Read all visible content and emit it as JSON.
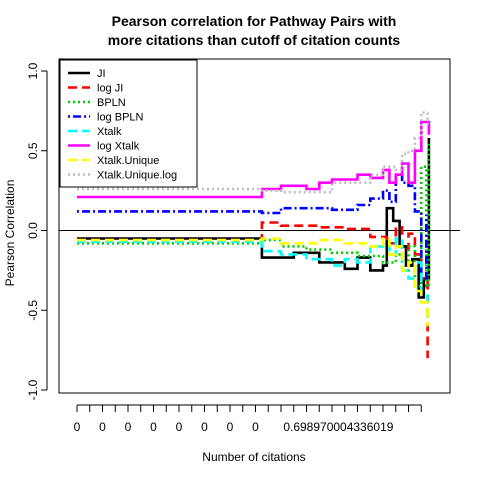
{
  "chart_data": {
    "type": "line",
    "title_lines": [
      "Pearson correlation for Pathway Pairs with",
      "more citations than cutoff of citation counts"
    ],
    "xlabel": "Number of citations",
    "ylabel": "Pearson Correlation",
    "ylim": [
      -1.0,
      1.0
    ],
    "xlim": [
      1,
      29
    ],
    "y_ticks": [
      {
        "value": -1.0,
        "label": "-1.0"
      },
      {
        "value": -0.5,
        "label": "-0.5"
      },
      {
        "value": 0.0,
        "label": "0.0"
      },
      {
        "value": 0.5,
        "label": "0.5"
      },
      {
        "value": 1.0,
        "label": "1.0"
      }
    ],
    "x_tick_positions": [
      1,
      2,
      3,
      4,
      5,
      6,
      7,
      8,
      9,
      10,
      11,
      12,
      13,
      14,
      15,
      16,
      17,
      18,
      19,
      20,
      21,
      22,
      23,
      24,
      25,
      26,
      27,
      28
    ],
    "x_tick_labels": [
      {
        "position": 1,
        "text": "0"
      },
      {
        "position": 3,
        "text": "0"
      },
      {
        "position": 5,
        "text": "0"
      },
      {
        "position": 7,
        "text": "0"
      },
      {
        "position": 9,
        "text": "0"
      },
      {
        "position": 11,
        "text": "0"
      },
      {
        "position": 13,
        "text": "0"
      },
      {
        "position": 15,
        "text": "0"
      },
      {
        "position": 21.5,
        "text": "0.698970004336019"
      }
    ],
    "reference_line_y": 0,
    "legend_position": "top-left",
    "series": [
      {
        "name": "JI",
        "color": "#000000",
        "dash": "solid",
        "points": [
          [
            1,
            -0.05
          ],
          [
            15.5,
            -0.05
          ],
          [
            15.5,
            -0.17
          ],
          [
            18,
            -0.17
          ],
          [
            18,
            -0.14
          ],
          [
            20,
            -0.14
          ],
          [
            20,
            -0.2
          ],
          [
            22,
            -0.2
          ],
          [
            22,
            -0.24
          ],
          [
            23,
            -0.24
          ],
          [
            23,
            -0.17
          ],
          [
            24,
            -0.17
          ],
          [
            24,
            -0.25
          ],
          [
            25,
            -0.25
          ],
          [
            25,
            -0.22
          ],
          [
            25.3,
            -0.22
          ],
          [
            25.3,
            0.14
          ],
          [
            25.8,
            0.14
          ],
          [
            25.8,
            0.06
          ],
          [
            26.3,
            0.06
          ],
          [
            26.3,
            -0.1
          ],
          [
            26.8,
            -0.1
          ],
          [
            26.8,
            -0.22
          ],
          [
            27.3,
            -0.22
          ],
          [
            27.3,
            -0.18
          ],
          [
            27.8,
            -0.18
          ],
          [
            27.8,
            -0.42
          ],
          [
            28.2,
            -0.42
          ],
          [
            28.2,
            -0.3
          ],
          [
            28.6,
            -0.3
          ],
          [
            28.6,
            0.58
          ]
        ]
      },
      {
        "name": "log JI",
        "color": "#ff0000",
        "dash": "long",
        "points": [
          [
            1,
            -0.06
          ],
          [
            15.5,
            -0.06
          ],
          [
            15.5,
            0.05
          ],
          [
            17,
            0.05
          ],
          [
            17,
            0.03
          ],
          [
            20,
            0.03
          ],
          [
            20,
            0.02
          ],
          [
            22,
            0.02
          ],
          [
            22,
            0.01
          ],
          [
            24,
            0.01
          ],
          [
            24,
            -0.04
          ],
          [
            25.3,
            -0.04
          ],
          [
            25.3,
            -0.08
          ],
          [
            26,
            -0.08
          ],
          [
            26,
            0.02
          ],
          [
            26.5,
            0.02
          ],
          [
            26.5,
            -0.12
          ],
          [
            27,
            -0.12
          ],
          [
            27,
            -0.02
          ],
          [
            27.5,
            -0.02
          ],
          [
            27.5,
            -0.15
          ],
          [
            28,
            -0.15
          ],
          [
            28,
            -0.3
          ],
          [
            28.5,
            -0.3
          ],
          [
            28.5,
            -0.8
          ]
        ]
      },
      {
        "name": "BPLN",
        "color": "#00cc00",
        "dash": "dotted",
        "points": [
          [
            1,
            -0.08
          ],
          [
            15.5,
            -0.08
          ],
          [
            15.5,
            -0.06
          ],
          [
            17,
            -0.06
          ],
          [
            17,
            -0.1
          ],
          [
            19,
            -0.1
          ],
          [
            19,
            -0.12
          ],
          [
            21,
            -0.12
          ],
          [
            21,
            -0.14
          ],
          [
            23,
            -0.14
          ],
          [
            23,
            -0.16
          ],
          [
            25,
            -0.16
          ],
          [
            25,
            -0.2
          ],
          [
            26,
            -0.2
          ],
          [
            26,
            -0.15
          ],
          [
            26.5,
            -0.15
          ],
          [
            26.5,
            -0.25
          ],
          [
            27,
            -0.25
          ],
          [
            27,
            -0.1
          ],
          [
            27.5,
            -0.1
          ],
          [
            27.5,
            -0.35
          ],
          [
            28,
            -0.35
          ],
          [
            28,
            0.4
          ],
          [
            28.4,
            0.4
          ],
          [
            28.4,
            -0.35
          ],
          [
            28.6,
            -0.35
          ],
          [
            28.6,
            0.55
          ]
        ]
      },
      {
        "name": "log BPLN",
        "color": "#0000ff",
        "dash": "dotdash",
        "points": [
          [
            1,
            0.12
          ],
          [
            15.5,
            0.12
          ],
          [
            15.5,
            0.11
          ],
          [
            17,
            0.11
          ],
          [
            17,
            0.14
          ],
          [
            21,
            0.14
          ],
          [
            21,
            0.13
          ],
          [
            23,
            0.13
          ],
          [
            23,
            0.16
          ],
          [
            24,
            0.16
          ],
          [
            24,
            0.2
          ],
          [
            25,
            0.2
          ],
          [
            25,
            0.25
          ],
          [
            25.5,
            0.25
          ],
          [
            25.5,
            0.18
          ],
          [
            26,
            0.18
          ],
          [
            26,
            0.35
          ],
          [
            26.5,
            0.35
          ],
          [
            26.5,
            0.3
          ],
          [
            27,
            0.3
          ],
          [
            27,
            0.28
          ],
          [
            27.5,
            0.28
          ],
          [
            27.5,
            0.12
          ],
          [
            28,
            0.12
          ],
          [
            28,
            -0.3
          ],
          [
            28.4,
            -0.3
          ],
          [
            28.4,
            0.1
          ]
        ]
      },
      {
        "name": "Xtalk",
        "color": "#00ffff",
        "dash": "long",
        "points": [
          [
            1,
            -0.07
          ],
          [
            15.5,
            -0.07
          ],
          [
            15.5,
            -0.13
          ],
          [
            17,
            -0.13
          ],
          [
            17,
            -0.15
          ],
          [
            19,
            -0.15
          ],
          [
            19,
            -0.18
          ],
          [
            21,
            -0.18
          ],
          [
            21,
            -0.22
          ],
          [
            22,
            -0.22
          ],
          [
            22,
            -0.18
          ],
          [
            23,
            -0.18
          ],
          [
            23,
            -0.2
          ],
          [
            24,
            -0.2
          ],
          [
            24,
            -0.1
          ],
          [
            25,
            -0.1
          ],
          [
            25,
            -0.08
          ],
          [
            25.5,
            -0.08
          ],
          [
            25.5,
            -0.15
          ],
          [
            26,
            -0.15
          ],
          [
            26,
            -0.05
          ],
          [
            26.5,
            -0.05
          ],
          [
            26.5,
            -0.25
          ],
          [
            27,
            -0.25
          ],
          [
            27,
            -0.3
          ],
          [
            27.5,
            -0.3
          ],
          [
            27.5,
            -0.2
          ],
          [
            28,
            -0.2
          ],
          [
            28,
            -0.4
          ],
          [
            28.5,
            -0.4
          ],
          [
            28.5,
            -0.55
          ]
        ]
      },
      {
        "name": "log Xtalk",
        "color": "#ff00ff",
        "dash": "solid",
        "points": [
          [
            1,
            0.21
          ],
          [
            15.5,
            0.21
          ],
          [
            15.5,
            0.26
          ],
          [
            17,
            0.26
          ],
          [
            17,
            0.28
          ],
          [
            19,
            0.28
          ],
          [
            19,
            0.26
          ],
          [
            20,
            0.26
          ],
          [
            20,
            0.3
          ],
          [
            21,
            0.3
          ],
          [
            21,
            0.32
          ],
          [
            23,
            0.32
          ],
          [
            23,
            0.35
          ],
          [
            24,
            0.35
          ],
          [
            24,
            0.33
          ],
          [
            25,
            0.33
          ],
          [
            25,
            0.38
          ],
          [
            25.5,
            0.38
          ],
          [
            25.5,
            0.3
          ],
          [
            26,
            0.3
          ],
          [
            26,
            0.35
          ],
          [
            26.5,
            0.35
          ],
          [
            26.5,
            0.42
          ],
          [
            27,
            0.42
          ],
          [
            27,
            0.3
          ],
          [
            27.5,
            0.3
          ],
          [
            27.5,
            0.5
          ],
          [
            28,
            0.5
          ],
          [
            28,
            0.68
          ],
          [
            28.6,
            0.68
          ],
          [
            28.6,
            0.6
          ]
        ]
      },
      {
        "name": "Xtalk.Unique",
        "color": "#ffff00",
        "dash": "long",
        "points": [
          [
            1,
            -0.06
          ],
          [
            15.5,
            -0.06
          ],
          [
            15.5,
            -0.05
          ],
          [
            17,
            -0.05
          ],
          [
            17,
            -0.08
          ],
          [
            20,
            -0.08
          ],
          [
            20,
            -0.06
          ],
          [
            22,
            -0.06
          ],
          [
            22,
            -0.08
          ],
          [
            24,
            -0.08
          ],
          [
            24,
            -0.1
          ],
          [
            25,
            -0.1
          ],
          [
            25,
            -0.05
          ],
          [
            25.5,
            -0.05
          ],
          [
            25.5,
            -0.15
          ],
          [
            26,
            -0.15
          ],
          [
            26,
            -0.1
          ],
          [
            26.5,
            -0.1
          ],
          [
            26.5,
            -0.25
          ],
          [
            27,
            -0.25
          ],
          [
            27,
            -0.2
          ],
          [
            27.5,
            -0.2
          ],
          [
            27.5,
            -0.38
          ],
          [
            28,
            -0.38
          ],
          [
            28,
            -0.45
          ],
          [
            28.5,
            -0.45
          ],
          [
            28.5,
            -0.6
          ]
        ]
      },
      {
        "name": "Xtalk.Unique.log",
        "color": "#bebebe",
        "dash": "dotted",
        "points": [
          [
            1,
            0.26
          ],
          [
            15.5,
            0.26
          ],
          [
            15.5,
            0.25
          ],
          [
            17,
            0.25
          ],
          [
            17,
            0.24
          ],
          [
            21,
            0.24
          ],
          [
            21,
            0.3
          ],
          [
            24,
            0.3
          ],
          [
            24,
            0.35
          ],
          [
            25,
            0.35
          ],
          [
            25,
            0.4
          ],
          [
            26,
            0.4
          ],
          [
            26,
            0.38
          ],
          [
            26.5,
            0.38
          ],
          [
            26.5,
            0.48
          ],
          [
            27,
            0.48
          ],
          [
            27,
            0.5
          ],
          [
            27.5,
            0.5
          ],
          [
            27.5,
            0.58
          ],
          [
            28,
            0.58
          ],
          [
            28,
            0.74
          ],
          [
            28.5,
            0.74
          ],
          [
            28.5,
            0.65
          ]
        ]
      }
    ]
  }
}
